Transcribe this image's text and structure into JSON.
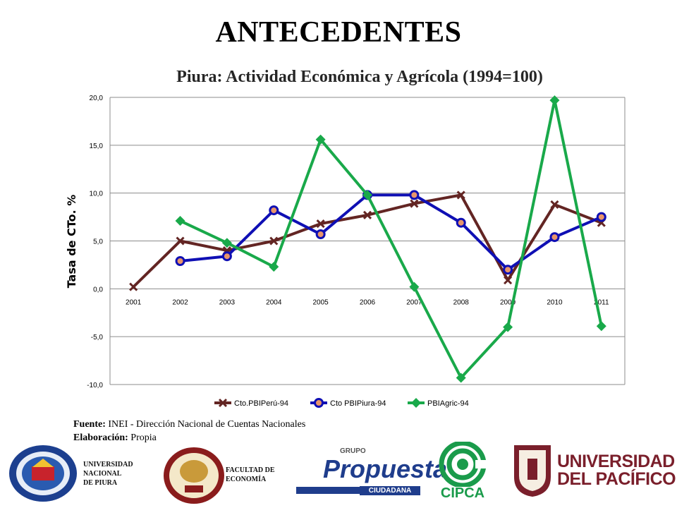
{
  "slide": {
    "title": "ANTECEDENTES"
  },
  "chart_data": {
    "type": "line",
    "title": "Piura: Actividad Económica y Agrícola (1994=100)",
    "xlabel": "",
    "ylabel": "Tasa de CTo. %",
    "categories": [
      "2001",
      "2002",
      "2003",
      "2004",
      "2005",
      "2006",
      "2007",
      "2008",
      "2009",
      "2010",
      "2011"
    ],
    "ylim": [
      -10,
      20
    ],
    "yticks": [
      20,
      15,
      10,
      5,
      0,
      -5,
      -10
    ],
    "ytick_labels": [
      "20,0",
      "15,0",
      "10,0",
      "5,0",
      "0,0",
      "-5,0",
      "-10,0"
    ],
    "grid": true,
    "legend_position": "bottom",
    "series": [
      {
        "name": "Cto.PBIPerú-94",
        "color": "#632523",
        "marker": "x",
        "values": [
          0.2,
          5.0,
          4.0,
          5.0,
          6.8,
          7.7,
          8.9,
          9.8,
          0.9,
          8.8,
          6.9
        ]
      },
      {
        "name": "Cto PBIPiura-94",
        "color": "#0f0fb4",
        "marker": "circle",
        "values": [
          null,
          2.9,
          3.4,
          8.2,
          5.7,
          9.8,
          9.8,
          6.9,
          2.0,
          5.4,
          7.5
        ]
      },
      {
        "name": "PBIAgric-94",
        "color": "#19a94a",
        "marker": "diamond",
        "values": [
          null,
          7.1,
          4.8,
          2.3,
          15.6,
          9.8,
          0.2,
          -9.3,
          -4.0,
          19.7,
          -3.9
        ]
      }
    ]
  },
  "notes": {
    "source_label": "Fuente:",
    "source_text": "INEI - Dirección Nacional de Cuentas Nacionales",
    "elab_label": "Elaboración:",
    "elab_text": "Propia"
  },
  "footer": {
    "unp_lines": [
      "UNIVERSIDAD",
      "NACIONAL",
      "DE PIURA"
    ],
    "fac_lines": [
      "FACULTAD DE",
      "ECONOMÍA"
    ],
    "propuesta": {
      "grupo": "GRUPO",
      "main": "Propuesta",
      "sub": "CIUDADANA"
    },
    "cipca": "CIPCA",
    "up_lines": [
      "UNIVERSIDAD",
      "DEL PACÍFICO"
    ]
  }
}
